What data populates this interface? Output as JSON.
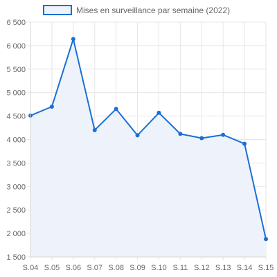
{
  "chart_data": {
    "type": "line",
    "categories": [
      "S.04",
      "S.05",
      "S.06",
      "S.07",
      "S.08",
      "S.09",
      "S.10",
      "S.11",
      "S.12",
      "S.13",
      "S.14",
      "S.15"
    ],
    "series": [
      {
        "name": "Mises en surveillance par semaine (2022)",
        "values": [
          4510,
          4700,
          6140,
          4200,
          4650,
          4090,
          4570,
          4120,
          4030,
          4100,
          3910,
          1880
        ]
      }
    ],
    "yticks": [
      "1 500",
      "2 000",
      "2 500",
      "3 000",
      "3 500",
      "4 000",
      "4 500",
      "5 000",
      "5 500",
      "6 000",
      "6 500"
    ],
    "ylim": [
      1500,
      6500
    ],
    "grid": true,
    "legend_position": "top",
    "colors": {
      "line": "#1a6fd4",
      "fill": "#eef3fb",
      "grid": "#e6e6e6",
      "text": "#666666"
    }
  }
}
